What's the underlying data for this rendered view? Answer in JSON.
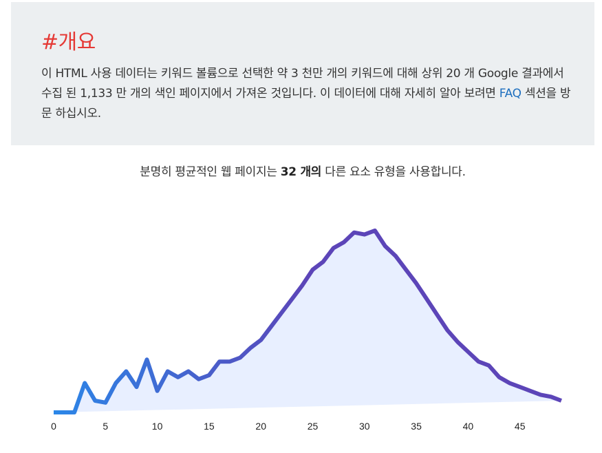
{
  "overview": {
    "title": "#개요",
    "text_part1": "이 HTML 사용 데이터는 키워드 볼륨으로 선택한 약 3 천만 개의 키워드에 대해 상위 20 개 Google 결과에서 수집 된 1,133 만 개의 색인 페이지에서 가져온 것입니다. 이 데이터에 대해 자세히 알아 보려면 ",
    "link_text": "FAQ",
    "text_part2": " 섹션을 방문 하십시오."
  },
  "summary": {
    "before": "분명히 평균적인 웹 페이지는 ",
    "highlight": "32 개의",
    "after": " 다른 요소 유형을 사용합니다."
  },
  "colors": {
    "line_start": "#2b87e8",
    "line_end": "#5c45b8",
    "fill": "#e8efff",
    "overview_bg": "#eceff1",
    "title": "#e53935",
    "link": "#1e6fbf"
  },
  "chart_data": {
    "type": "area",
    "title": "",
    "xlabel": "",
    "ylabel": "",
    "xlim": [
      0,
      50
    ],
    "ylim": [
      0,
      100
    ],
    "x_ticks": [
      0,
      5,
      10,
      15,
      20,
      25,
      30,
      35,
      40,
      45
    ],
    "grid": false,
    "legend": "none",
    "x": [
      0,
      1,
      2,
      3,
      4,
      5,
      6,
      7,
      8,
      9,
      10,
      11,
      12,
      13,
      14,
      15,
      16,
      17,
      18,
      19,
      20,
      21,
      22,
      23,
      24,
      25,
      26,
      27,
      28,
      29,
      30,
      31,
      32,
      33,
      34,
      35,
      36,
      37,
      38,
      39,
      40,
      41,
      42,
      43,
      44,
      45,
      46,
      47,
      48,
      49
    ],
    "values": [
      0,
      0,
      0,
      15,
      6,
      5,
      15,
      21,
      13,
      27,
      11,
      21,
      18,
      21,
      17,
      19,
      26,
      26,
      28,
      33,
      37,
      44,
      51,
      58,
      65,
      73,
      77,
      84,
      87,
      92,
      91,
      93,
      85,
      80,
      73,
      66,
      58,
      50,
      42,
      36,
      31,
      26,
      24,
      18,
      15,
      13,
      11,
      9,
      8,
      6
    ]
  }
}
